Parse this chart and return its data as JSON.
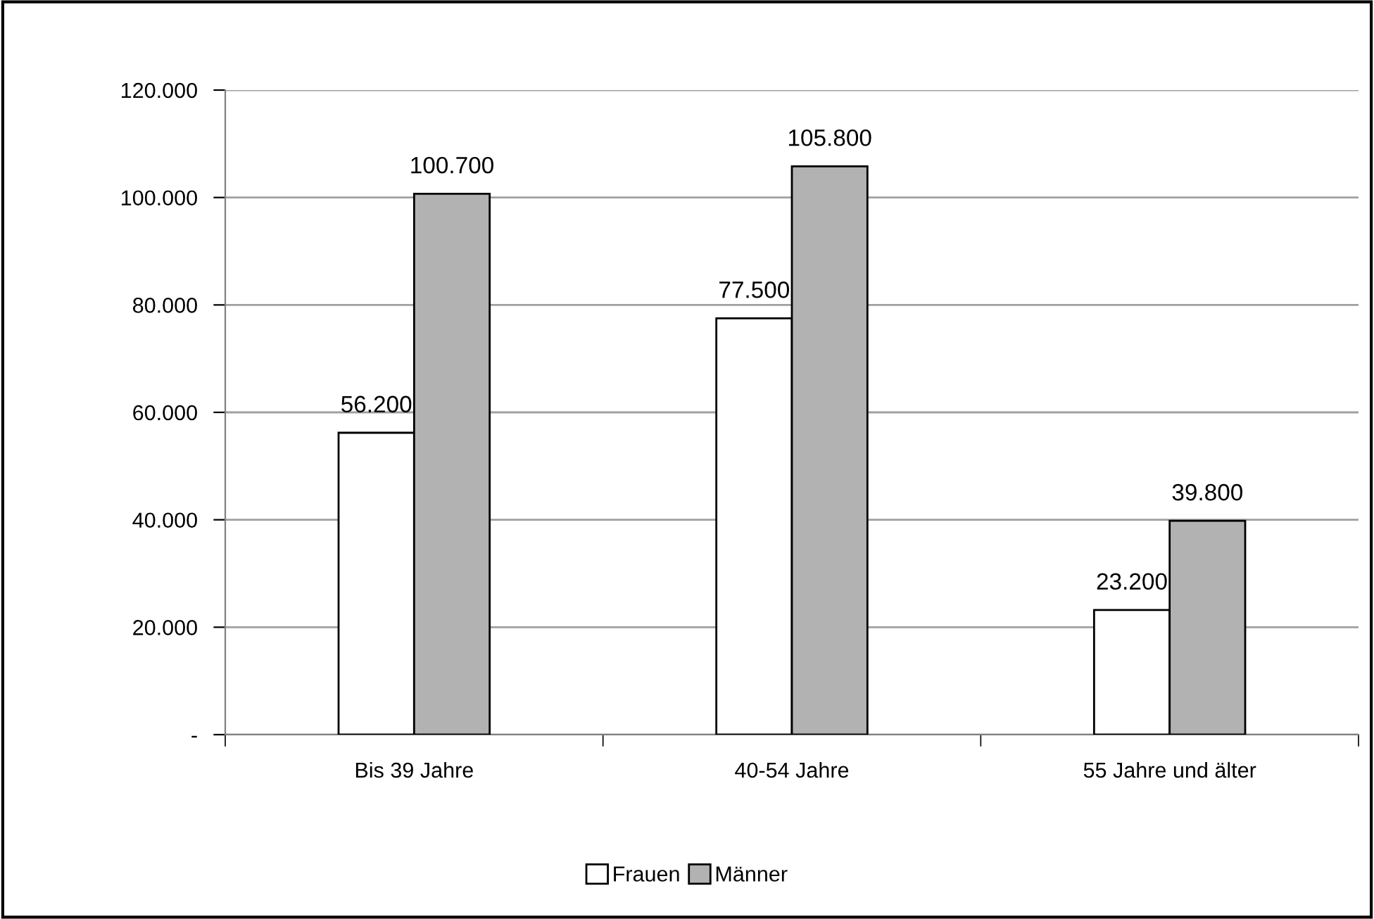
{
  "chart_data": {
    "type": "bar",
    "categories": [
      "Bis 39 Jahre",
      "40-54 Jahre",
      "55 Jahre und älter"
    ],
    "series": [
      {
        "name": "Frauen",
        "color": "#ffffff",
        "values": [
          56200,
          77500,
          23200
        ],
        "value_labels": [
          "56.200",
          "77.500",
          "23.200"
        ]
      },
      {
        "name": "Männer",
        "color": "#b2b2b2",
        "values": [
          100700,
          105800,
          39800
        ],
        "value_labels": [
          "100.700",
          "105.800",
          "39.800"
        ]
      }
    ],
    "ylim": [
      0,
      120000
    ],
    "yticks": [
      {
        "value": 0,
        "label": "-"
      },
      {
        "value": 20000,
        "label": "20.000"
      },
      {
        "value": 40000,
        "label": "40.000"
      },
      {
        "value": 60000,
        "label": "60.000"
      },
      {
        "value": 80000,
        "label": "80.000"
      },
      {
        "value": 100000,
        "label": "100.000"
      },
      {
        "value": 120000,
        "label": "120.000"
      }
    ],
    "grid": "y",
    "legend": "bottom"
  }
}
